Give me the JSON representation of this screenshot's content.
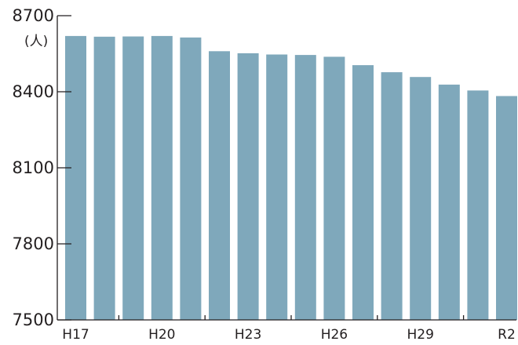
{
  "chart_data": {
    "type": "bar",
    "title": "",
    "xlabel": "",
    "ylabel": "",
    "y_unit": "(人)",
    "ylim": [
      7500,
      8700
    ],
    "yticks": [
      "8700",
      "8400",
      "8100",
      "7800",
      "7500"
    ],
    "ytick_values": [
      8700,
      8400,
      8100,
      7800,
      7500
    ],
    "categories": [
      "H17",
      "H18",
      "H19",
      "H20",
      "H21",
      "H22",
      "H23",
      "H24",
      "H25",
      "H26",
      "H27",
      "H28",
      "H29",
      "H30",
      "R1",
      "R2"
    ],
    "x_tick_labels": [
      "H17",
      "",
      "",
      "H20",
      "",
      "",
      "H23",
      "",
      "",
      "H26",
      "",
      "",
      "H29",
      "",
      "",
      "R2"
    ],
    "values": [
      8620,
      8617,
      8618,
      8620,
      8614,
      8560,
      8552,
      8547,
      8545,
      8538,
      8505,
      8477,
      8458,
      8428,
      8405,
      8383
    ],
    "bar_color": "#7fa8bb",
    "grid": false,
    "legend": "none"
  }
}
